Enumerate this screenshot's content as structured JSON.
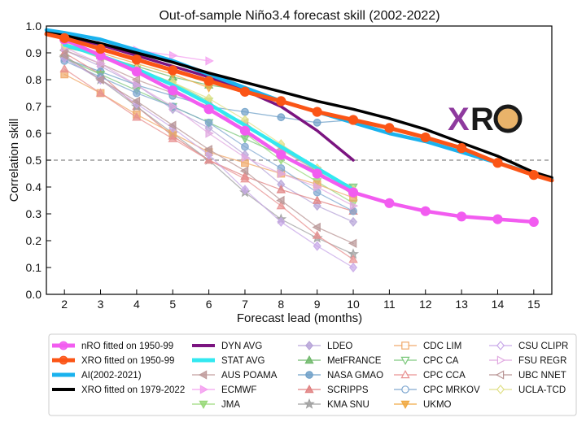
{
  "chart_data": {
    "type": "line",
    "title": "Out-of-sample Niño3.4 forecast skill (2002-2022)",
    "xlabel": "Forecast lead (months)",
    "ylabel": "Correlation skill",
    "xlim": [
      1.5,
      15.5
    ],
    "ylim": [
      0.0,
      1.0
    ],
    "xticks": [
      2,
      3,
      4,
      5,
      6,
      7,
      8,
      9,
      10,
      11,
      12,
      13,
      14,
      15
    ],
    "yticks": [
      0.0,
      0.1,
      0.2,
      0.3,
      0.4,
      0.5,
      0.6,
      0.7,
      0.8,
      0.9,
      1.0
    ],
    "reference_line": {
      "y": 0.5,
      "style": "dashed",
      "color": "#888888"
    },
    "logo": {
      "text_x": "X",
      "text_ro": "RO",
      "colors": [
        "#8e3a9e",
        "#1a1a1a"
      ]
    },
    "legend_placement": "bottom",
    "series": [
      {
        "name": "ECMWF",
        "color": "#f4a0f0",
        "marker": "triangle-right",
        "x": [
          2,
          3,
          4,
          5,
          6
        ],
        "y": [
          0.95,
          0.93,
          0.91,
          0.89,
          0.87
        ]
      },
      {
        "name": "JMA",
        "color": "#98d878",
        "marker": "triangle-down",
        "x": [
          2,
          3,
          4,
          5,
          6,
          7,
          8,
          9,
          10
        ],
        "y": [
          0.93,
          0.88,
          0.84,
          0.79,
          0.72,
          0.6,
          0.5,
          0.42,
          0.34
        ]
      },
      {
        "name": "MetFRANCE",
        "color": "#6fb86a",
        "marker": "triangle-up",
        "x": [
          2,
          3,
          4,
          5,
          6,
          7
        ],
        "y": [
          0.92,
          0.89,
          0.85,
          0.81,
          0.78,
          0.76
        ]
      },
      {
        "name": "LDEO",
        "color": "#b7a4d8",
        "marker": "diamond",
        "x": [
          2,
          3,
          4,
          5,
          6,
          7,
          8,
          9,
          10
        ],
        "y": [
          0.91,
          0.85,
          0.78,
          0.69,
          0.62,
          0.52,
          0.41,
          0.33,
          0.27
        ]
      },
      {
        "name": "NASA GMAO",
        "color": "#6fa0c8",
        "marker": "circle",
        "x": [
          2,
          3,
          4,
          5,
          6,
          7,
          8,
          9,
          10
        ],
        "y": [
          0.88,
          0.83,
          0.78,
          0.74,
          0.7,
          0.68,
          0.66,
          0.64,
          0.65
        ]
      },
      {
        "name": "SCRIPPS",
        "color": "#e08080",
        "marker": "triangle-up",
        "x": [
          2,
          3,
          4,
          5,
          6,
          7,
          8,
          9,
          10
        ],
        "y": [
          0.9,
          0.82,
          0.7,
          0.59,
          0.5,
          0.44,
          0.39,
          0.35,
          0.31
        ]
      },
      {
        "name": "KMA SNU",
        "color": "#a0a0a0",
        "marker": "star",
        "x": [
          2,
          3,
          4,
          5,
          6,
          7,
          8,
          9,
          10
        ],
        "y": [
          0.88,
          0.8,
          0.7,
          0.6,
          0.5,
          0.38,
          0.28,
          0.21,
          0.15
        ]
      },
      {
        "name": "AUS POAMA",
        "color": "#c09c9c",
        "marker": "triangle-left",
        "x": [
          2,
          3,
          4,
          5,
          6,
          7,
          8,
          9,
          10
        ],
        "y": [
          0.91,
          0.86,
          0.8,
          0.75,
          0.7,
          0.64,
          0.54,
          0.46,
          0.37
        ]
      },
      {
        "name": "CDC LIM",
        "color": "#f0a868",
        "marker": "square",
        "x": [
          2,
          3,
          4,
          5,
          6,
          7,
          8,
          9,
          10
        ],
        "y": [
          0.82,
          0.75,
          0.67,
          0.6,
          0.53,
          0.49,
          0.45,
          0.41,
          0.36
        ]
      },
      {
        "name": "CPC CA",
        "color": "#7cc87c",
        "marker": "triangle-down",
        "x": [
          2,
          3,
          4,
          5,
          6,
          7,
          8,
          9,
          10
        ],
        "y": [
          0.88,
          0.82,
          0.76,
          0.7,
          0.64,
          0.58,
          0.52,
          0.46,
          0.4
        ]
      },
      {
        "name": "CPC CCA",
        "color": "#e89090",
        "marker": "triangle-up",
        "x": [
          2,
          3,
          4,
          5,
          6,
          7,
          8,
          9,
          10
        ],
        "y": [
          0.84,
          0.75,
          0.66,
          0.58,
          0.5,
          0.43,
          0.33,
          0.22,
          0.13
        ]
      },
      {
        "name": "CPC MRKOV",
        "color": "#7fa7d0",
        "marker": "circle",
        "x": [
          2,
          3,
          4,
          5,
          6,
          7,
          8,
          9,
          10
        ],
        "y": [
          0.87,
          0.81,
          0.75,
          0.7,
          0.64,
          0.55,
          0.47,
          0.38,
          0.31
        ]
      },
      {
        "name": "UKMO",
        "color": "#f0a840",
        "marker": "triangle-down",
        "x": [
          2,
          3,
          4,
          5,
          6
        ],
        "y": [
          0.94,
          0.9,
          0.86,
          0.82,
          0.77
        ]
      },
      {
        "name": "CSU CLIPR",
        "color": "#c8a8e8",
        "marker": "diamond",
        "x": [
          2,
          3,
          4,
          5,
          6,
          7,
          8,
          9,
          10
        ],
        "y": [
          0.88,
          0.8,
          0.71,
          0.62,
          0.52,
          0.39,
          0.27,
          0.18,
          0.1
        ]
      },
      {
        "name": "FSU REGR",
        "color": "#e0a8e0",
        "marker": "triangle-right",
        "x": [
          2,
          3,
          4,
          5,
          6,
          7,
          8,
          9,
          10
        ],
        "y": [
          0.92,
          0.86,
          0.78,
          0.7,
          0.6,
          0.51,
          0.45,
          0.4,
          0.33
        ]
      },
      {
        "name": "UBC NNET",
        "color": "#b89494",
        "marker": "triangle-left",
        "x": [
          2,
          3,
          4,
          5,
          6,
          7,
          8,
          9,
          10
        ],
        "y": [
          0.89,
          0.8,
          0.72,
          0.63,
          0.54,
          0.46,
          0.35,
          0.25,
          0.19
        ]
      },
      {
        "name": "UCLA-TCD",
        "color": "#e0e088",
        "marker": "diamond",
        "x": [
          2,
          3,
          4,
          5,
          6,
          7,
          8,
          9,
          10
        ],
        "y": [
          0.93,
          0.89,
          0.84,
          0.79,
          0.73,
          0.65,
          0.56,
          0.47,
          0.39
        ]
      },
      {
        "name": "DYN AVG",
        "color": "#7b1480",
        "marker": "none",
        "width": 3.5,
        "x": [
          2,
          3,
          4,
          5,
          6,
          7,
          8,
          9,
          10
        ],
        "y": [
          0.96,
          0.93,
          0.89,
          0.85,
          0.81,
          0.76,
          0.7,
          0.61,
          0.5
        ]
      },
      {
        "name": "STAT AVG",
        "color": "#33e8f0",
        "marker": "none",
        "width": 4.5,
        "x": [
          2,
          3,
          4,
          5,
          6,
          7,
          8,
          9,
          10
        ],
        "y": [
          0.93,
          0.89,
          0.84,
          0.78,
          0.71,
          0.63,
          0.55,
          0.47,
          0.39
        ]
      },
      {
        "name": "nRO fitted on 1950-99",
        "color": "#f25cf0",
        "marker": "circle",
        "width": 4.5,
        "x": [
          2,
          3,
          4,
          5,
          6,
          7,
          8,
          9,
          10,
          11,
          12,
          13,
          14,
          15
        ],
        "y": [
          0.95,
          0.89,
          0.83,
          0.76,
          0.69,
          0.61,
          0.52,
          0.45,
          0.38,
          0.34,
          0.31,
          0.29,
          0.28,
          0.27
        ]
      },
      {
        "name": "AI(2002-2021)",
        "color": "#1ab2ee",
        "marker": "none",
        "width": 4.5,
        "x": [
          1.5,
          2,
          3,
          4,
          5,
          6,
          7,
          8,
          9,
          10,
          11,
          12,
          13,
          14,
          15,
          15.5
        ],
        "y": [
          0.985,
          0.975,
          0.95,
          0.91,
          0.87,
          0.82,
          0.77,
          0.72,
          0.68,
          0.64,
          0.6,
          0.57,
          0.53,
          0.49,
          0.45,
          0.43
        ]
      },
      {
        "name": "XRO fitted on 1979-2022",
        "color": "#000000",
        "marker": "none",
        "width": 3.5,
        "x": [
          1.5,
          2,
          3,
          4,
          5,
          6,
          7,
          8,
          9,
          10,
          11,
          12,
          13,
          14,
          15,
          15.5
        ],
        "y": [
          0.975,
          0.965,
          0.935,
          0.9,
          0.865,
          0.825,
          0.79,
          0.755,
          0.72,
          0.69,
          0.655,
          0.615,
          0.565,
          0.515,
          0.455,
          0.435
        ]
      },
      {
        "name": "XRO fitted on 1950-99",
        "color": "#fb5516",
        "marker": "circle",
        "width": 5,
        "x": [
          1.5,
          2,
          3,
          4,
          5,
          6,
          7,
          8,
          9,
          10,
          11,
          12,
          13,
          14,
          15,
          15.5
        ],
        "y": [
          0.97,
          0.955,
          0.915,
          0.875,
          0.835,
          0.795,
          0.755,
          0.72,
          0.68,
          0.65,
          0.62,
          0.585,
          0.545,
          0.49,
          0.445,
          0.425
        ]
      }
    ],
    "legend": {
      "columns": [
        [
          {
            "label": "nRO fitted on 1950-99",
            "color": "#f25cf0",
            "kind": "line-marker",
            "marker": "circle",
            "width": 5
          },
          {
            "label": "XRO fitted on 1950-99",
            "color": "#fb5516",
            "kind": "line-marker",
            "marker": "circle",
            "width": 5
          },
          {
            "label": "AI(2002-2021)",
            "color": "#1ab2ee",
            "kind": "line",
            "width": 5
          },
          {
            "label": "XRO fitted on 1979-2022",
            "color": "#000000",
            "kind": "line",
            "width": 4
          }
        ],
        [
          {
            "label": "DYN AVG",
            "color": "#7b1480",
            "kind": "line",
            "width": 4
          },
          {
            "label": "STAT AVG",
            "color": "#33e8f0",
            "kind": "line",
            "width": 5
          },
          {
            "label": "AUS POAMA",
            "color": "#c09c9c",
            "kind": "line-marker",
            "marker": "triangle-left",
            "width": 1.5
          },
          {
            "label": "ECMWF",
            "color": "#f4a0f0",
            "kind": "line-marker",
            "marker": "triangle-right",
            "width": 1.5
          },
          {
            "label": "JMA",
            "color": "#98d878",
            "kind": "line-marker",
            "marker": "triangle-down",
            "width": 1.5
          }
        ],
        [
          {
            "label": "LDEO",
            "color": "#b7a4d8",
            "kind": "line-marker",
            "marker": "diamond",
            "width": 1.5
          },
          {
            "label": "MetFRANCE",
            "color": "#6fb86a",
            "kind": "line-marker",
            "marker": "triangle-up",
            "width": 1.5
          },
          {
            "label": "NASA GMAO",
            "color": "#6fa0c8",
            "kind": "line-marker",
            "marker": "circle",
            "width": 1.5
          },
          {
            "label": "SCRIPPS",
            "color": "#e08080",
            "kind": "line-marker",
            "marker": "triangle-up",
            "width": 1.5
          },
          {
            "label": "KMA SNU",
            "color": "#a0a0a0",
            "kind": "line-marker",
            "marker": "star",
            "width": 1.5
          }
        ],
        [
          {
            "label": "CDC LIM",
            "color": "#f0a868",
            "kind": "line-marker",
            "marker": "square-open",
            "width": 1.5
          },
          {
            "label": "CPC CA",
            "color": "#7cc87c",
            "kind": "line-marker",
            "marker": "triangle-down-open",
            "width": 1.5
          },
          {
            "label": "CPC CCA",
            "color": "#e89090",
            "kind": "line-marker",
            "marker": "triangle-up-open",
            "width": 1.5
          },
          {
            "label": "CPC MRKOV",
            "color": "#7fa7d0",
            "kind": "line-marker",
            "marker": "circle-open",
            "width": 1.5
          },
          {
            "label": "UKMO",
            "color": "#f0a840",
            "kind": "line-marker",
            "marker": "triangle-down",
            "width": 1.5
          }
        ],
        [
          {
            "label": "CSU CLIPR",
            "color": "#c8a8e8",
            "kind": "line-marker",
            "marker": "diamond-open",
            "width": 1.5
          },
          {
            "label": "FSU REGR",
            "color": "#e0a8e0",
            "kind": "line-marker",
            "marker": "triangle-right-open",
            "width": 1.5
          },
          {
            "label": "UBC NNET",
            "color": "#b89494",
            "kind": "line-marker",
            "marker": "triangle-left-open",
            "width": 1.5
          },
          {
            "label": "UCLA-TCD",
            "color": "#e0e088",
            "kind": "line-marker",
            "marker": "diamond-open",
            "width": 1.5
          }
        ]
      ]
    }
  }
}
